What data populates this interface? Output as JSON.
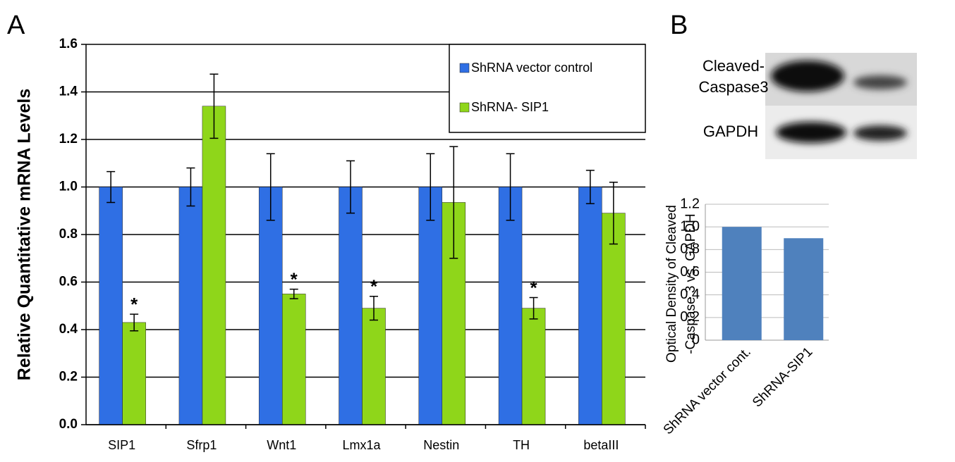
{
  "chart_data": [
    {
      "type": "grouped-bar",
      "panel": "A",
      "y_label": "Relative Quantitative mRNA Levels",
      "categories": [
        "SIP1",
        "Sfrp1",
        "Wnt1",
        "Lmx1a",
        "Nestin",
        "TH",
        "betaIII"
      ],
      "series": [
        {
          "name": "ShRNA vector control",
          "color": "#2f6fe4",
          "values": [
            1.0,
            1.0,
            1.0,
            1.0,
            1.0,
            1.0,
            1.0
          ],
          "errors": [
            0.065,
            0.08,
            0.14,
            0.11,
            0.14,
            0.14,
            0.07
          ]
        },
        {
          "name": "ShRNA- SIP1",
          "color": "#8fd61a",
          "values": [
            0.43,
            1.34,
            0.55,
            0.49,
            0.935,
            0.49,
            0.89
          ],
          "errors": [
            0.035,
            0.135,
            0.02,
            0.05,
            0.235,
            0.045,
            0.13
          ],
          "annotations": [
            "*",
            null,
            "*",
            "*",
            null,
            "*",
            null
          ]
        }
      ],
      "ylim": [
        0,
        1.6
      ],
      "yticks": [
        {
          "value": 0,
          "label": "0.0"
        },
        0.2,
        0.4,
        0.6,
        0.8,
        {
          "value": 1,
          "label": "1.0"
        },
        1.2,
        1.4,
        1.6
      ],
      "grid": true,
      "legend": "upper right"
    },
    {
      "type": "bar",
      "panel": "B",
      "y_label": [
        "Optical Density of Cleaved",
        "-Caspase 3 vs. GAPDH"
      ],
      "categories": [
        "ShRNA vector cont.",
        "ShRNA-SIP1"
      ],
      "values": [
        1.0,
        0.9
      ],
      "color": "#4f81bd",
      "ylim": [
        0,
        1.2
      ],
      "yticks": [
        0,
        0.2,
        0.4,
        0.6,
        0.8,
        {
          "value": 1,
          "label": "1.0"
        },
        1.2
      ],
      "grid": true
    }
  ],
  "blot": {
    "labels": [
      "Cleaved-",
      "Caspase3",
      "GAPDH"
    ]
  }
}
